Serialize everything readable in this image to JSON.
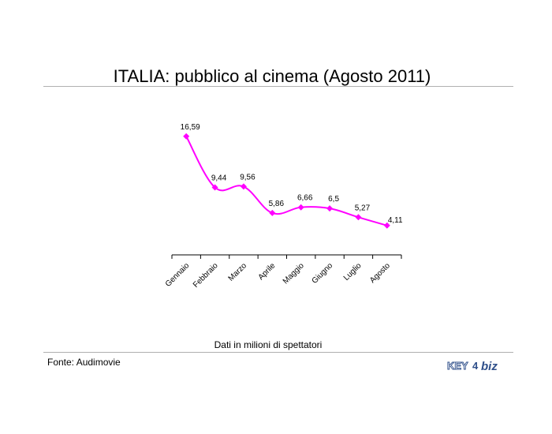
{
  "title": "ITALIA: pubblico al cinema (Agosto 2011)",
  "note": "Dati in milioni di spettatori",
  "source": "Fonte: Audimovie",
  "logo": {
    "text_left": "KEY",
    "text_mid": "4",
    "text_right": "biz"
  },
  "colors": {
    "series": "#ff00ff",
    "rule": "#b0b0b0",
    "logo": "#2f4f8a"
  },
  "chart_data": {
    "type": "line",
    "title": "ITALIA: pubblico al cinema (Agosto 2011)",
    "categories": [
      "Gennaio",
      "Febbraio",
      "Marzo",
      "Aprile",
      "Maggio",
      "Giugno",
      "Luglio",
      "Agosto"
    ],
    "series": [
      {
        "values": [
          16.59,
          9.44,
          9.56,
          5.86,
          6.66,
          6.5,
          5.27,
          4.11
        ],
        "labels": [
          "16,59",
          "9,44",
          "9,56",
          "5,86",
          "6,66",
          "6,5",
          "5,27",
          "4,11"
        ]
      }
    ],
    "xlabel": "",
    "ylabel": "",
    "ylim": [
      0,
      18
    ],
    "grid": false,
    "legend": "none"
  }
}
